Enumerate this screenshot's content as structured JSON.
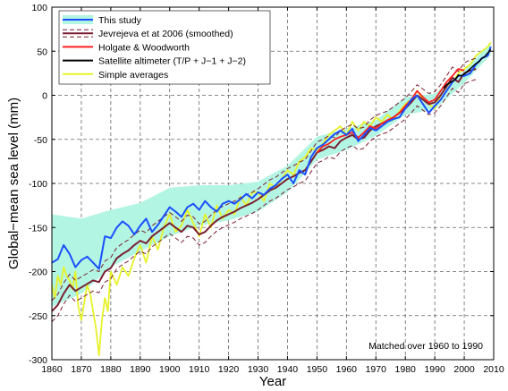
{
  "chart_data": {
    "type": "line",
    "xlabel": "Year",
    "ylabel": "Global−mean sea level (mm)",
    "xlim": [
      1860,
      2010
    ],
    "ylim": [
      -300,
      100
    ],
    "xticks": [
      1860,
      1870,
      1880,
      1890,
      1900,
      1910,
      1920,
      1930,
      1940,
      1950,
      1960,
      1970,
      1980,
      1990,
      2000,
      2010
    ],
    "yticks": [
      -300,
      -250,
      -200,
      -150,
      -100,
      -50,
      0,
      50,
      100
    ],
    "grid": true,
    "legend_position": "top-left",
    "annotation": "Matched over 1960 to 1990",
    "uncertainty_band": {
      "name": "This study uncertainty",
      "color": "#b3f5e3",
      "x": [
        1860,
        1870,
        1880,
        1890,
        1900,
        1910,
        1920,
        1930,
        1940,
        1950,
        1960,
        1970,
        1980,
        1990,
        2000,
        2009
      ],
      "upper": [
        -135,
        -140,
        -130,
        -122,
        -105,
        -102,
        -102,
        -98,
        -80,
        -47,
        -38,
        -28,
        -2,
        2,
        28,
        60
      ],
      "lower": [
        -240,
        -225,
        -195,
        -177,
        -160,
        -148,
        -142,
        -132,
        -110,
        -73,
        -62,
        -46,
        -22,
        -16,
        14,
        46
      ]
    },
    "series": [
      {
        "name": "This study",
        "color": "#1a4fff",
        "width": 2.0,
        "x": [
          1860,
          1862,
          1864,
          1866,
          1868,
          1870,
          1872,
          1874,
          1876,
          1878,
          1880,
          1882,
          1884,
          1886,
          1888,
          1890,
          1892,
          1894,
          1896,
          1898,
          1900,
          1902,
          1904,
          1906,
          1908,
          1910,
          1912,
          1914,
          1916,
          1918,
          1920,
          1922,
          1924,
          1926,
          1928,
          1930,
          1932,
          1934,
          1936,
          1938,
          1940,
          1942,
          1944,
          1946,
          1948,
          1950,
          1952,
          1954,
          1956,
          1958,
          1960,
          1962,
          1964,
          1966,
          1968,
          1970,
          1972,
          1974,
          1976,
          1978,
          1980,
          1982,
          1984,
          1986,
          1988,
          1990,
          1992,
          1994,
          1996,
          1998,
          2000,
          2002,
          2004,
          2006,
          2008,
          2009
        ],
        "y": [
          -190,
          -186,
          -170,
          -180,
          -195,
          -187,
          -183,
          -190,
          -197,
          -160,
          -162,
          -150,
          -143,
          -148,
          -158,
          -148,
          -140,
          -155,
          -147,
          -137,
          -127,
          -132,
          -138,
          -127,
          -123,
          -130,
          -120,
          -127,
          -132,
          -123,
          -120,
          -123,
          -118,
          -112,
          -117,
          -110,
          -113,
          -106,
          -102,
          -95,
          -90,
          -100,
          -85,
          -90,
          -70,
          -60,
          -56,
          -50,
          -44,
          -40,
          -45,
          -38,
          -52,
          -45,
          -37,
          -40,
          -35,
          -30,
          -27,
          -25,
          -15,
          -5,
          0,
          -10,
          -20,
          -12,
          -5,
          5,
          15,
          22,
          22,
          25,
          35,
          42,
          45,
          55
        ]
      },
      {
        "name": "Jevrejeva et at 2006 (smoothed)",
        "color": "#7a1f32",
        "width": 2.0,
        "dashed_band": true,
        "x": [
          1860,
          1862,
          1864,
          1866,
          1868,
          1870,
          1872,
          1874,
          1876,
          1878,
          1880,
          1882,
          1884,
          1886,
          1888,
          1890,
          1892,
          1894,
          1896,
          1898,
          1900,
          1902,
          1904,
          1906,
          1908,
          1910,
          1912,
          1914,
          1916,
          1918,
          1920,
          1922,
          1924,
          1926,
          1928,
          1930,
          1932,
          1934,
          1936,
          1938,
          1940,
          1942,
          1944,
          1946,
          1948,
          1950,
          1952,
          1954,
          1956,
          1958,
          1960,
          1962,
          1964,
          1966,
          1968,
          1970,
          1972,
          1974,
          1976,
          1978,
          1980,
          1982,
          1984,
          1986,
          1988,
          1990,
          1992,
          1994,
          1996,
          1998,
          2000,
          2002,
          2004
        ],
        "y": [
          -245,
          -238,
          -225,
          -215,
          -222,
          -218,
          -214,
          -210,
          -212,
          -200,
          -196,
          -185,
          -180,
          -176,
          -170,
          -165,
          -168,
          -160,
          -155,
          -150,
          -145,
          -150,
          -155,
          -148,
          -150,
          -158,
          -155,
          -148,
          -142,
          -138,
          -135,
          -132,
          -128,
          -125,
          -122,
          -118,
          -113,
          -108,
          -105,
          -100,
          -95,
          -92,
          -88,
          -85,
          -75,
          -65,
          -62,
          -58,
          -60,
          -52,
          -48,
          -45,
          -50,
          -48,
          -40,
          -35,
          -32,
          -30,
          -25,
          -20,
          -15,
          -8,
          0,
          -5,
          -10,
          -8,
          0,
          10,
          20,
          15,
          25,
          28,
          30
        ]
      },
      {
        "name": "Holgate & Woodworth",
        "color": "#ff2020",
        "width": 1.8,
        "x": [
          1950,
          1952,
          1954,
          1956,
          1958,
          1960,
          1962,
          1964,
          1966,
          1968,
          1970,
          1972,
          1974,
          1976,
          1978,
          1980,
          1982,
          1984,
          1986,
          1988,
          1990,
          1992,
          1994,
          1996,
          1998,
          2000
        ],
        "y": [
          -65,
          -58,
          -55,
          -50,
          -47,
          -45,
          -42,
          -48,
          -42,
          -35,
          -38,
          -32,
          -28,
          -25,
          -20,
          -12,
          -5,
          5,
          -2,
          -8,
          -5,
          5,
          15,
          22,
          30,
          28
        ]
      },
      {
        "name": "Satellite altimeter (T/P + J−1 + J−2)",
        "color": "#000000",
        "width": 1.5,
        "x": [
          1993,
          1994,
          1995,
          1996,
          1997,
          1998,
          1999,
          2000,
          2001,
          2002,
          2003,
          2004,
          2005,
          2006,
          2007,
          2008,
          2009
        ],
        "y": [
          8,
          12,
          14,
          16,
          18,
          23,
          22,
          24,
          27,
          30,
          33,
          36,
          38,
          42,
          44,
          48,
          52
        ]
      },
      {
        "name": "Simple averages",
        "color": "#e6f22a",
        "width": 1.8,
        "x": [
          1860,
          1861,
          1862,
          1863,
          1864,
          1865,
          1866,
          1867,
          1868,
          1869,
          1870,
          1871,
          1872,
          1873,
          1874,
          1875,
          1876,
          1877,
          1878,
          1879,
          1880,
          1882,
          1884,
          1886,
          1888,
          1890,
          1892,
          1894,
          1896,
          1898,
          1900,
          1902,
          1904,
          1906,
          1908,
          1910,
          1912,
          1914,
          1916,
          1918,
          1920,
          1922,
          1924,
          1926,
          1928,
          1930,
          1932,
          1934,
          1936,
          1938,
          1940,
          1942,
          1944,
          1946,
          1948,
          1950,
          1952,
          1954,
          1956,
          1958,
          1960,
          1962,
          1964,
          1966,
          1968,
          1970,
          1972,
          1974,
          1976,
          1978,
          1980,
          1982,
          1984,
          1986,
          1988,
          1990,
          1992,
          1994,
          1996,
          1998,
          2000,
          2002,
          2004,
          2006,
          2008,
          2009
        ],
        "y": [
          -215,
          -230,
          -205,
          -215,
          -195,
          -205,
          -210,
          -220,
          -200,
          -240,
          -255,
          -235,
          -215,
          -225,
          -245,
          -265,
          -295,
          -255,
          -230,
          -245,
          -200,
          -215,
          -195,
          -205,
          -185,
          -170,
          -190,
          -160,
          -175,
          -150,
          -135,
          -155,
          -148,
          -130,
          -145,
          -160,
          -135,
          -150,
          -125,
          -140,
          -130,
          -135,
          -115,
          -125,
          -110,
          -110,
          -120,
          -100,
          -105,
          -95,
          -85,
          -90,
          -75,
          -70,
          -60,
          -62,
          -55,
          -45,
          -40,
          -35,
          -45,
          -30,
          -40,
          -30,
          -35,
          -25,
          -30,
          -22,
          -28,
          -18,
          -10,
          -5,
          5,
          -5,
          -10,
          -15,
          0,
          10,
          15,
          25,
          30,
          35,
          45,
          50,
          55,
          60
        ]
      }
    ]
  }
}
